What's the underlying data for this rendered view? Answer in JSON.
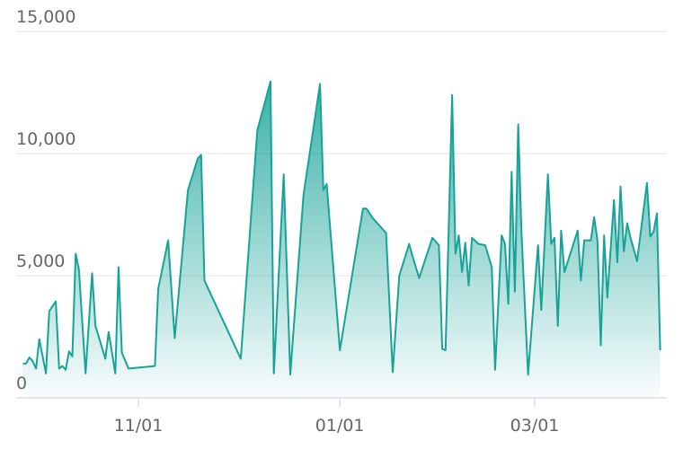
{
  "chart_data": {
    "type": "area",
    "color": "#17a398",
    "grid": true,
    "x": [
      "09/27",
      "09/28",
      "09/29",
      "09/30",
      "10/01",
      "10/02",
      "10/04",
      "10/05",
      "10/07",
      "10/08",
      "10/09",
      "10/10",
      "10/11",
      "10/12",
      "10/13",
      "10/14",
      "10/16",
      "10/18",
      "10/19",
      "10/22",
      "10/23",
      "10/25",
      "10/26",
      "10/27",
      "10/29",
      "11/06",
      "11/07",
      "11/10",
      "11/12",
      "11/16",
      "11/19",
      "11/20",
      "11/21",
      "12/02",
      "12/07",
      "12/11",
      "12/12",
      "12/15",
      "12/17",
      "12/21",
      "12/26",
      "12/27",
      "12/28",
      "01/01",
      "01/08",
      "01/09",
      "01/11",
      "01/15",
      "01/17",
      "01/19",
      "01/22",
      "01/23",
      "01/25",
      "01/29",
      "01/31",
      "02/01",
      "02/02",
      "02/04",
      "02/05",
      "02/06",
      "02/07",
      "02/08",
      "02/09",
      "02/10",
      "02/12",
      "02/14",
      "02/16",
      "02/17",
      "02/19",
      "02/20",
      "02/21",
      "02/22",
      "02/23",
      "02/24",
      "02/25",
      "02/27",
      "03/02",
      "03/03",
      "03/05",
      "03/06",
      "03/07",
      "03/08",
      "03/09",
      "03/10",
      "03/14",
      "03/15",
      "03/16",
      "03/18",
      "03/19",
      "03/20",
      "03/21",
      "03/22",
      "03/23",
      "03/25",
      "03/26",
      "03/27",
      "03/28",
      "03/29",
      "03/30",
      "04/01",
      "04/03",
      "04/04",
      "04/05",
      "04/06",
      "04/07",
      "04/08"
    ],
    "values": [
      1400,
      1400,
      1650,
      1500,
      1200,
      2400,
      1000,
      3550,
      3950,
      1200,
      1300,
      1150,
      1900,
      1700,
      5900,
      5250,
      1000,
      5100,
      2950,
      1600,
      2700,
      1000,
      5350,
      1850,
      1200,
      1300,
      4450,
      6450,
      2450,
      8500,
      9800,
      9950,
      4800,
      1600,
      10950,
      12950,
      1000,
      9150,
      950,
      8300,
      12850,
      8500,
      8750,
      1950,
      7750,
      7750,
      7350,
      6750,
      1050,
      5000,
      6300,
      5800,
      4900,
      6550,
      6250,
      2000,
      1950,
      12400,
      5900,
      6650,
      5150,
      6350,
      4600,
      6550,
      6300,
      6250,
      5350,
      1150,
      6650,
      6300,
      3850,
      9250,
      4350,
      11200,
      6750,
      950,
      6250,
      3600,
      9150,
      6300,
      6550,
      2950,
      6850,
      5150,
      6850,
      4800,
      6450,
      6450,
      7400,
      6450,
      2150,
      6650,
      4100,
      8100,
      5550,
      8650,
      6000,
      7150,
      6550,
      5600,
      7750,
      8800,
      6600,
      6800,
      7550,
      1950
    ],
    "xlim": [
      "09/25",
      "04/10"
    ],
    "xticks": [
      "11/01",
      "01/01",
      "03/01"
    ],
    "ylim": [
      0,
      15000
    ],
    "yticks": [
      0,
      {
        "value": 5000,
        "label": "5,000"
      },
      {
        "value": 10000,
        "label": "10,000"
      },
      {
        "value": 15000,
        "label": "15,000"
      }
    ]
  }
}
